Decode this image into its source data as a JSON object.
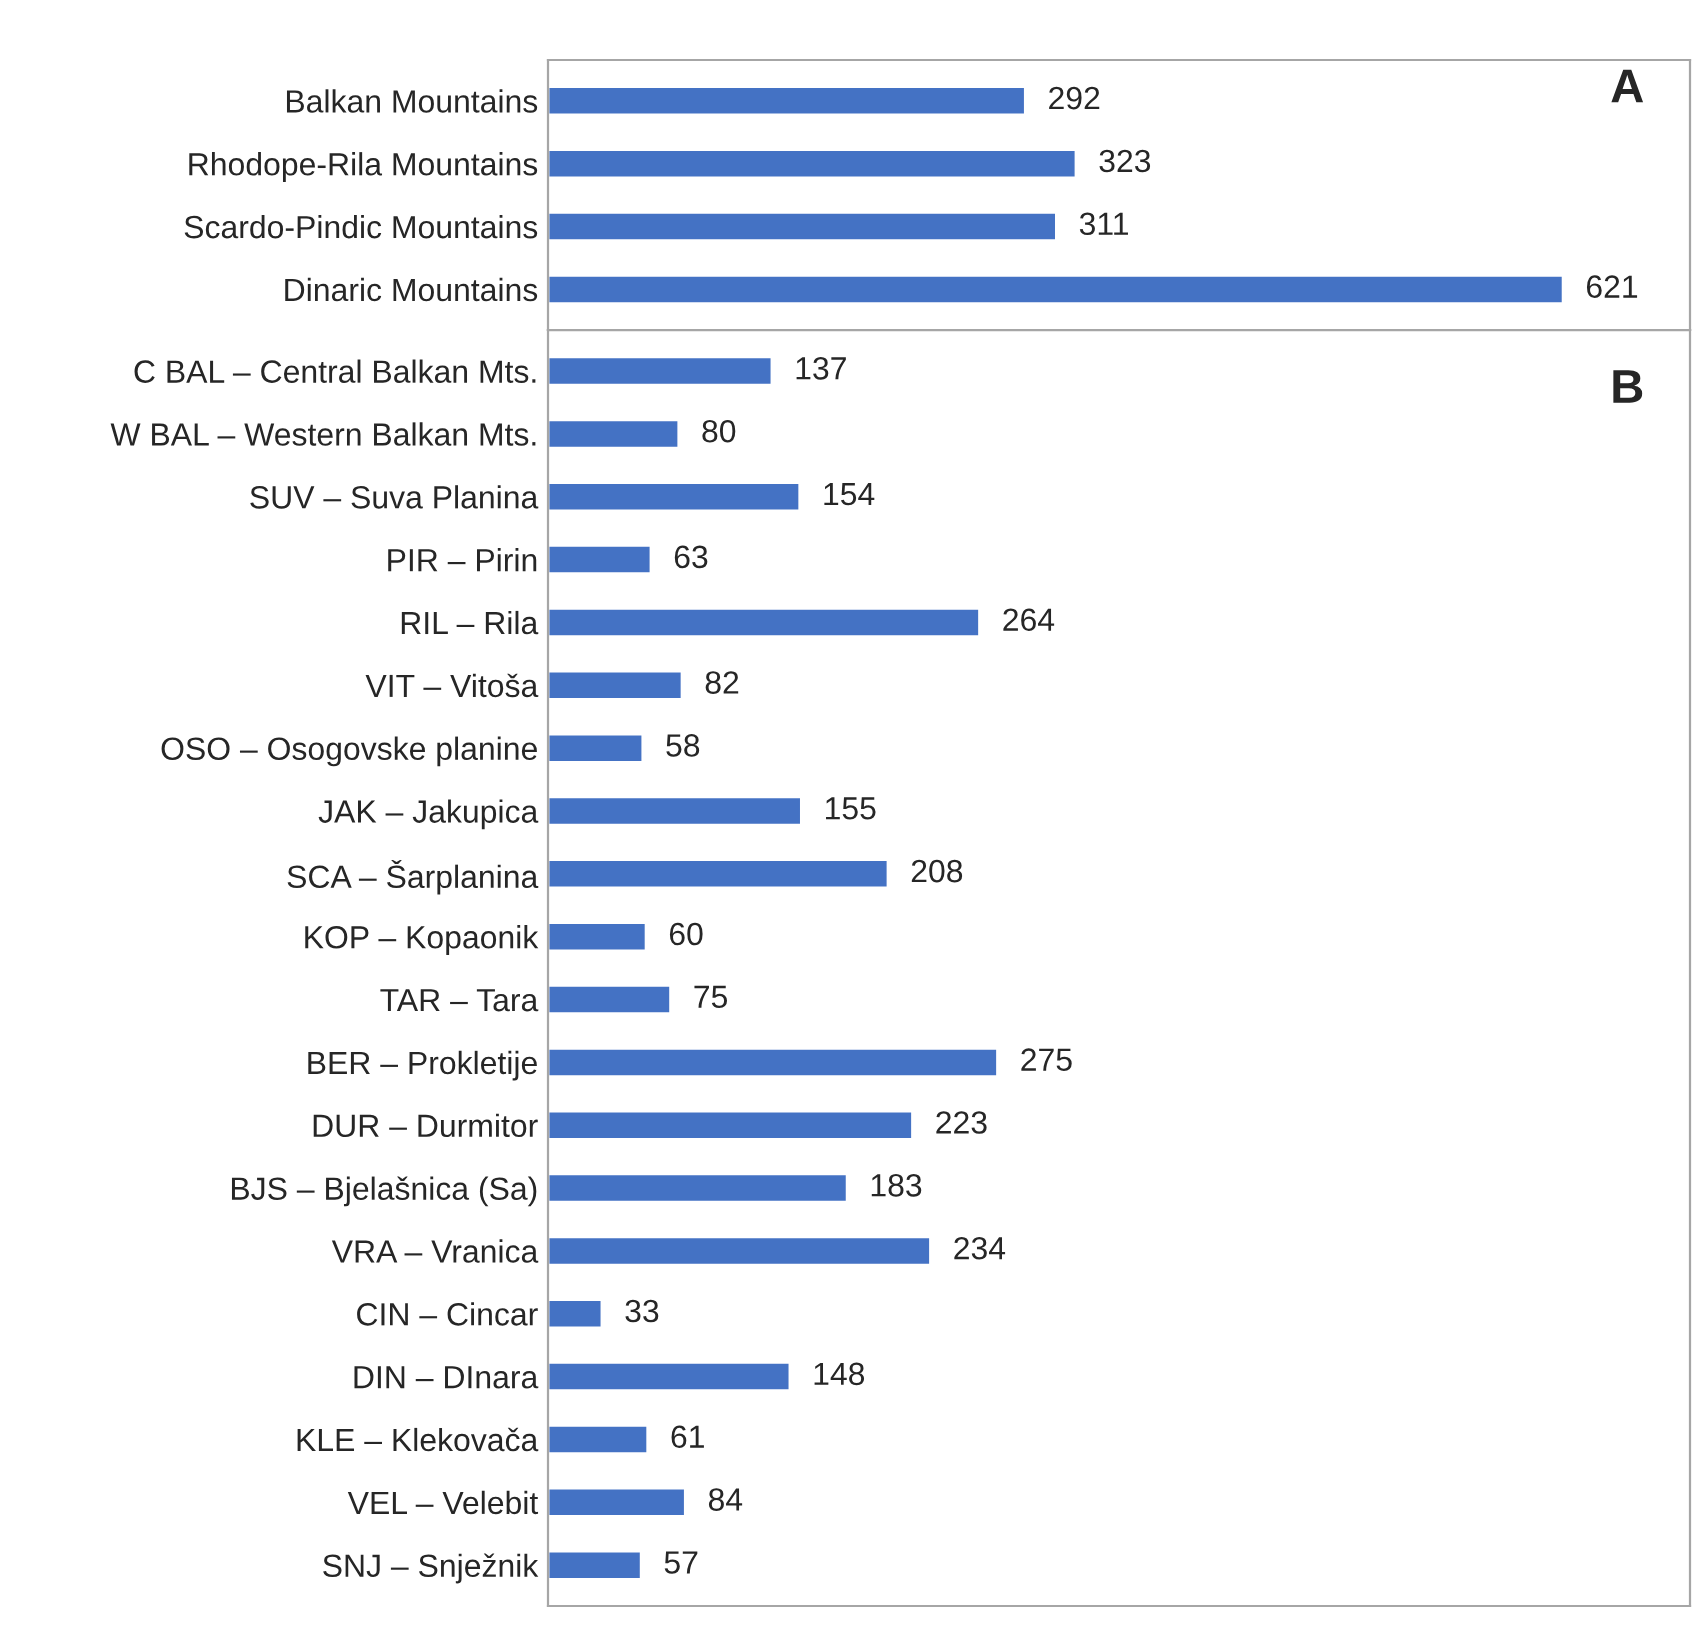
{
  "chart_data": [
    {
      "type": "bar",
      "orientation": "horizontal",
      "categories": [
        "Balkan Mountains",
        "Rhodope-Rila Mountains",
        "Scardo-Pindic Mountains",
        "Dinaric Mountains"
      ],
      "values": [
        292,
        323,
        311,
        621
      ],
      "color": "#4472c4",
      "data_labels": true,
      "tick_labels": "y",
      "annotations": [
        "A"
      ]
    },
    {
      "type": "bar",
      "orientation": "horizontal",
      "categories": [
        "C BAL – Central Balkan Mts.",
        "W BAL – Western Balkan Mts.",
        "SUV – Suva Planina",
        "PIR – Pirin",
        "RIL – Rila",
        "VIT – Vitoša",
        "OSO – Osogovske planine",
        "JAK – Jakupica",
        "SCA – Šarplanina",
        "KOP – Kopaonik",
        "TAR – Tara",
        "BER – Prokletije",
        "DUR – Durmitor",
        "BJS – Bjelašnica (Sa)",
        "VRA – Vranica",
        "CIN – Cincar",
        "DIN – DInara",
        "KLE – Klekovača",
        "VEL – Velebit",
        "SNJ – Snježnik"
      ],
      "values": [
        137,
        80,
        154,
        63,
        264,
        82,
        58,
        155,
        208,
        60,
        75,
        275,
        223,
        183,
        234,
        33,
        148,
        61,
        84,
        57
      ],
      "color": "#4472c4",
      "data_labels": true,
      "tick_labels": "y",
      "annotations": [
        "B"
      ]
    }
  ]
}
